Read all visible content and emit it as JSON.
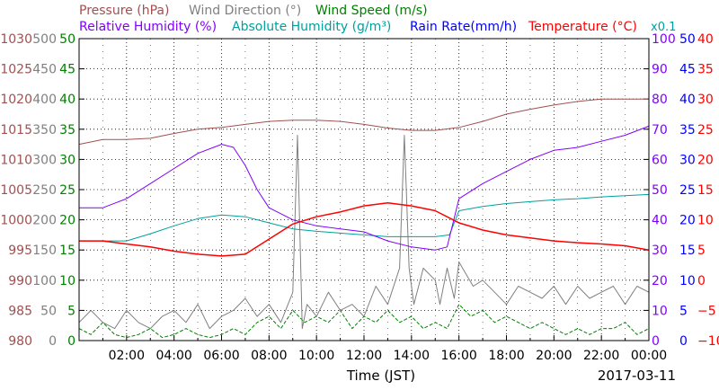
{
  "chart_data": {
    "type": "line",
    "x_axis": {
      "label": "Time (JST)",
      "date": "2017-03-11",
      "ticks": [
        "02:00",
        "04:00",
        "06:00",
        "08:00",
        "10:00",
        "12:00",
        "14:00",
        "16:00",
        "18:00",
        "20:00",
        "22:00",
        "00:00"
      ],
      "range_hours": [
        0,
        24
      ]
    },
    "legend": {
      "row1": [
        {
          "name": "Pressure (hPa)",
          "color": "#a05050"
        },
        {
          "name": "Wind Direction (°)",
          "color": "#808080"
        },
        {
          "name": "Wind Speed (m/s)",
          "color": "#008000"
        }
      ],
      "row2": [
        {
          "name": "Relative Humidity (%)",
          "color": "#8000ff"
        },
        {
          "name": "Absolute Humidity (g/m³)",
          "color": "#00a0a0"
        },
        {
          "name": "Rain Rate(mm/h)",
          "color": "#0000ff"
        },
        {
          "name": "Temperature (°C)",
          "color": "#ff0000"
        }
      ],
      "multiplier": "x0.1"
    },
    "axes": {
      "pressure": {
        "color": "#a05050",
        "ticks": [
          "980",
          "985",
          "990",
          "995",
          "1000",
          "1005",
          "1010",
          "1015",
          "1020",
          "1025",
          "1030"
        ],
        "range": [
          980,
          1030
        ]
      },
      "wind_direction": {
        "color": "#808080",
        "ticks": [
          "0",
          "50",
          "100",
          "150",
          "200",
          "250",
          "300",
          "350",
          "400",
          "450",
          "500"
        ],
        "range": [
          0,
          500
        ]
      },
      "wind_speed": {
        "color": "#008000",
        "ticks": [
          "0",
          "5",
          "10",
          "15",
          "20",
          "25",
          "30",
          "35",
          "40",
          "45",
          "50"
        ],
        "range": [
          0,
          50
        ]
      },
      "relative_humidity": {
        "color": "#8000ff",
        "ticks": [
          "0",
          "10",
          "20",
          "30",
          "40",
          "50",
          "60",
          "70",
          "80",
          "90",
          "100"
        ],
        "range": [
          0,
          100
        ]
      },
      "absolute_humidity_rain": {
        "color": "#0000ff",
        "ticks": [
          "0",
          "5",
          "10",
          "15",
          "20",
          "25",
          "30",
          "35",
          "40",
          "45",
          "50"
        ],
        "range": [
          0,
          50
        ]
      },
      "temperature": {
        "color": "#ff0000",
        "ticks": [
          "−10",
          "−5",
          "0",
          "5",
          "10",
          "15",
          "20",
          "25",
          "30",
          "35",
          "40"
        ],
        "range": [
          -10,
          40
        ]
      }
    },
    "grid": true,
    "series": [
      {
        "name": "Pressure (hPa)",
        "axis": "pressure",
        "color": "#a05050",
        "x": [
          0,
          1,
          2,
          3,
          4,
          5,
          6,
          7,
          8,
          9,
          10,
          11,
          12,
          13,
          14,
          15,
          16,
          17,
          18,
          19,
          20,
          21,
          22,
          23,
          24
        ],
        "y": [
          1012.5,
          1013.3,
          1013.3,
          1013.5,
          1014.3,
          1015,
          1015.3,
          1015.8,
          1016.3,
          1016.5,
          1016.5,
          1016.3,
          1015.8,
          1015.2,
          1014.8,
          1014.8,
          1015.3,
          1016.3,
          1017.5,
          1018.3,
          1019,
          1019.6,
          1020,
          1020,
          1020
        ]
      },
      {
        "name": "Relative Humidity (%)",
        "axis": "relative_humidity",
        "color": "#8000ff",
        "x": [
          0,
          1,
          2,
          3,
          4,
          5,
          6,
          6.5,
          7,
          7.5,
          8,
          9,
          10,
          11,
          12,
          13,
          14,
          15,
          15.5,
          16,
          17,
          18,
          19,
          20,
          21,
          22,
          23,
          24
        ],
        "y": [
          44,
          44,
          47,
          52,
          57,
          62,
          65,
          64,
          58,
          50,
          44,
          40,
          38,
          37,
          36,
          33,
          31,
          30,
          31,
          47,
          52,
          56,
          60,
          63,
          64,
          66,
          68,
          71
        ]
      },
      {
        "name": "Absolute Humidity (g/m³)",
        "axis": "absolute_humidity_rain",
        "color": "#00a0a0",
        "x": [
          0,
          1,
          2,
          3,
          4,
          5,
          6,
          7,
          8,
          9,
          10,
          11,
          12,
          13,
          14,
          15,
          15.6,
          16,
          17,
          18,
          19,
          20,
          21,
          22,
          23,
          24
        ],
        "y": [
          16.5,
          16.5,
          16.5,
          17.7,
          19,
          20.2,
          20.8,
          20.5,
          19.5,
          18.5,
          18.1,
          17.8,
          17.5,
          17.2,
          17.2,
          17.2,
          17.5,
          21.5,
          22.2,
          22.7,
          23,
          23.3,
          23.5,
          23.8,
          24,
          24.2
        ]
      },
      {
        "name": "Temperature (°C)",
        "axis": "temperature",
        "color": "#ff0000",
        "x": [
          0,
          1,
          2,
          3,
          4,
          5,
          6,
          7,
          8,
          9,
          10,
          11,
          12,
          13,
          14,
          15,
          16,
          17,
          18,
          19,
          20,
          21,
          22,
          23,
          24
        ],
        "y": [
          6.5,
          6.5,
          6,
          5.5,
          4.8,
          4.3,
          4,
          4.3,
          6.8,
          9.3,
          10.5,
          11.3,
          12.3,
          12.8,
          12.3,
          11.5,
          9.5,
          8.3,
          7.5,
          7,
          6.5,
          6.2,
          6,
          5.7,
          5
        ]
      },
      {
        "name": "Rain Rate(mm/h)",
        "axis": "absolute_humidity_rain",
        "color": "#0000ff",
        "x": [
          0,
          24
        ],
        "y": [
          0,
          0
        ]
      },
      {
        "name": "Wind Direction (°)",
        "axis": "wind_direction",
        "color": "#808080",
        "x": [
          0,
          0.5,
          1,
          1.5,
          2,
          2.5,
          3,
          3.5,
          4,
          4.5,
          5,
          5.5,
          6,
          6.5,
          7,
          7.5,
          8,
          8.5,
          9,
          9.2,
          9.4,
          9.6,
          10,
          10.5,
          11,
          11.5,
          12,
          12.5,
          13,
          13.5,
          13.7,
          13.9,
          14.1,
          14.5,
          15,
          15.2,
          15.5,
          15.8,
          16,
          16.3,
          16.6,
          17,
          17.5,
          18,
          18.5,
          19,
          19.5,
          20,
          20.5,
          21,
          21.5,
          22,
          22.5,
          23,
          23.5,
          24
        ],
        "y": [
          30,
          50,
          30,
          20,
          50,
          30,
          20,
          40,
          50,
          30,
          60,
          20,
          40,
          50,
          70,
          40,
          60,
          30,
          80,
          340,
          20,
          60,
          40,
          80,
          50,
          60,
          40,
          90,
          60,
          120,
          340,
          120,
          60,
          120,
          100,
          60,
          120,
          70,
          130,
          110,
          90,
          100,
          80,
          60,
          90,
          80,
          70,
          90,
          60,
          90,
          70,
          80,
          90,
          60,
          90,
          80
        ]
      },
      {
        "name": "Wind Speed (m/s)",
        "axis": "wind_speed",
        "color": "#008000",
        "x": [
          0,
          0.5,
          1,
          1.5,
          2,
          2.5,
          3,
          3.5,
          4,
          4.5,
          5,
          5.5,
          6,
          6.5,
          7,
          7.5,
          8,
          8.5,
          9,
          9.5,
          10,
          10.5,
          11,
          11.5,
          12,
          12.5,
          13,
          13.5,
          14,
          14.5,
          15,
          15.5,
          16,
          16.5,
          17,
          17.5,
          18,
          18.5,
          19,
          19.5,
          20,
          20.5,
          21,
          21.5,
          22,
          22.5,
          23,
          23.5,
          24
        ],
        "y": [
          2,
          1,
          3,
          1,
          0.5,
          1,
          2,
          0.5,
          1,
          2,
          1,
          0.5,
          1,
          2,
          1,
          3,
          4,
          2,
          5,
          3,
          4,
          3,
          5,
          2,
          4,
          3,
          5,
          3,
          4,
          2,
          3,
          2,
          6,
          4,
          5,
          3,
          4,
          3,
          2,
          3,
          2,
          1,
          2,
          1,
          2,
          2,
          3,
          1,
          2
        ]
      }
    ]
  }
}
